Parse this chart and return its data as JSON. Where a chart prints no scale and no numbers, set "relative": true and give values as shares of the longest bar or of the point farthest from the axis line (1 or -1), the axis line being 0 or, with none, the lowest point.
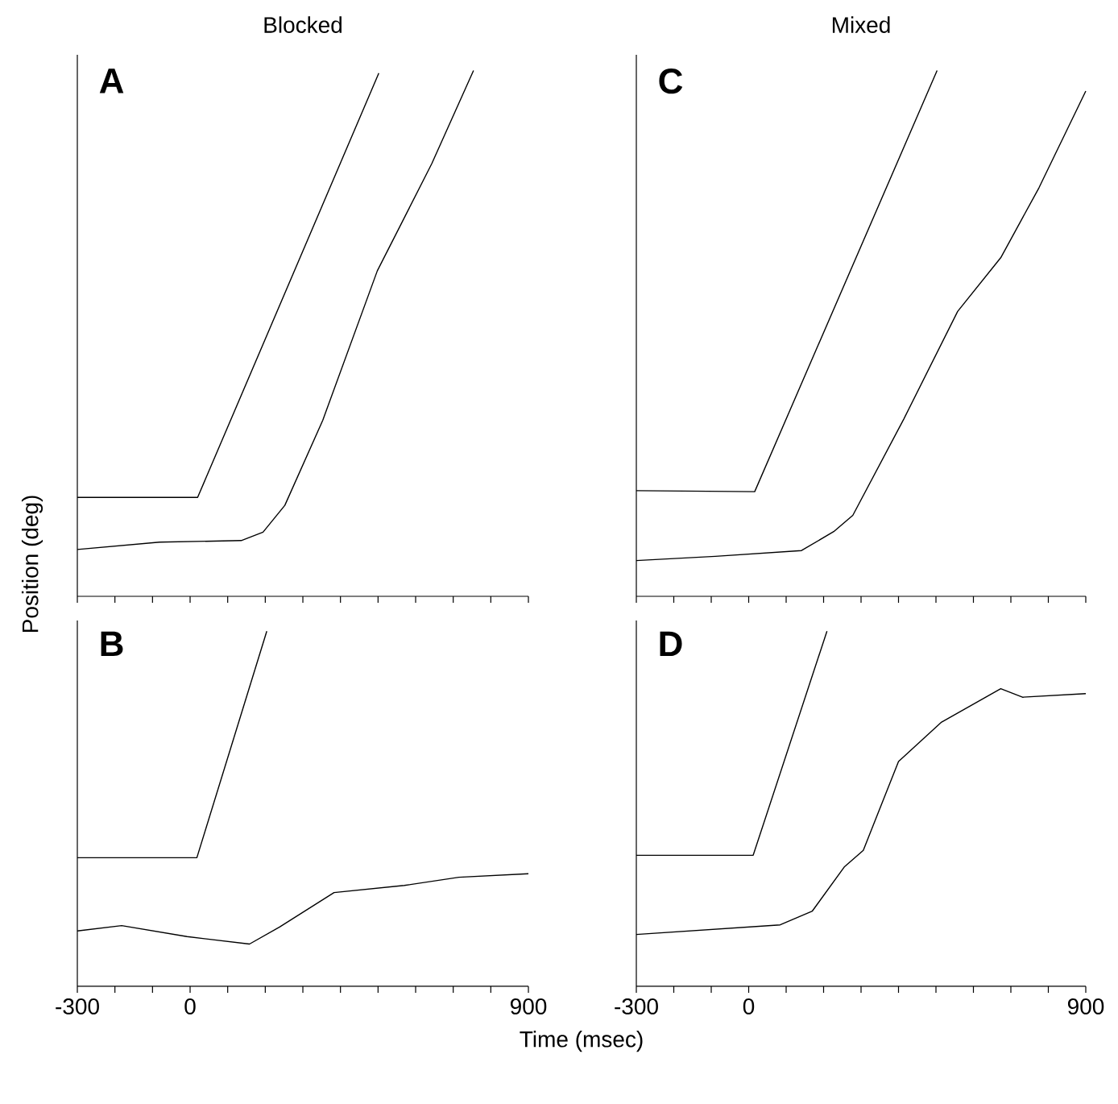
{
  "chart_data": [
    {
      "type": "line",
      "title": "Blocked",
      "annotations": [
        "A"
      ],
      "ylabel": "Position (deg)",
      "relative": true,
      "xlim": [
        -300,
        900
      ],
      "xticks": [
        -300,
        {
          "value": -200,
          "label": null
        },
        {
          "value": -100,
          "label": null
        },
        0,
        {
          "value": 100,
          "label": null
        },
        {
          "value": 200,
          "label": null
        },
        {
          "value": 300,
          "label": null
        },
        {
          "value": 400,
          "label": null
        },
        {
          "value": 500,
          "label": null
        },
        {
          "value": 600,
          "label": null
        },
        {
          "value": 700,
          "label": null
        },
        {
          "value": 800,
          "label": null
        },
        900
      ],
      "tick_labels": false,
      "series": [
        {
          "color": "#000000",
          "x": [
            -300,
            20,
            502
          ],
          "values": [
            0.188,
            0.188,
            0.995
          ]
        },
        {
          "color": "#000000",
          "x": [
            -300,
            -81,
            136,
            194,
            252,
            353,
            498,
            643,
            754
          ],
          "values": [
            0.089,
            0.103,
            0.106,
            0.122,
            0.173,
            0.335,
            0.619,
            0.823,
            1
          ]
        }
      ]
    },
    {
      "type": "line",
      "title": "Mixed",
      "annotations": [
        "C"
      ],
      "relative": true,
      "xlim": [
        -300,
        900
      ],
      "xticks": [
        -300,
        {
          "value": -200,
          "label": null
        },
        {
          "value": -100,
          "label": null
        },
        0,
        {
          "value": 100,
          "label": null
        },
        {
          "value": 200,
          "label": null
        },
        {
          "value": 300,
          "label": null
        },
        {
          "value": 400,
          "label": null
        },
        {
          "value": 500,
          "label": null
        },
        {
          "value": 600,
          "label": null
        },
        {
          "value": 700,
          "label": null
        },
        {
          "value": 800,
          "label": null
        },
        900
      ],
      "tick_labels": false,
      "series": [
        {
          "color": "#000000",
          "x": [
            -300,
            16,
            503
          ],
          "values": [
            0.201,
            0.199,
            1
          ]
        },
        {
          "color": "#000000",
          "x": [
            -300,
            -89,
            141,
            227,
            278,
            414,
            558,
            673,
            775,
            900
          ],
          "values": [
            0.068,
            0.076,
            0.087,
            0.123,
            0.154,
            0.337,
            0.542,
            0.644,
            0.777,
            0.961
          ]
        }
      ]
    },
    {
      "type": "line",
      "annotations": [
        "B"
      ],
      "xlabel": "Time (msec)",
      "relative": true,
      "xlim": [
        -300,
        900
      ],
      "xticks": [
        -300,
        {
          "value": -200,
          "label": null
        },
        {
          "value": -100,
          "label": null
        },
        0,
        {
          "value": 100,
          "label": null
        },
        {
          "value": 200,
          "label": null
        },
        {
          "value": 300,
          "label": null
        },
        {
          "value": 400,
          "label": null
        },
        {
          "value": 500,
          "label": null
        },
        {
          "value": 600,
          "label": null
        },
        {
          "value": 700,
          "label": null
        },
        {
          "value": 800,
          "label": null
        },
        900
      ],
      "tick_labels": "x",
      "series": [
        {
          "color": "#000000",
          "x": [
            -300,
            18,
            204
          ],
          "values": [
            0.362,
            0.362,
            1
          ]
        },
        {
          "color": "#000000",
          "x": [
            -300,
            -182,
            -8,
            158,
            238,
            383,
            570,
            715,
            900
          ],
          "values": [
            0.156,
            0.171,
            0.14,
            0.119,
            0.167,
            0.264,
            0.284,
            0.307,
            0.317
          ]
        }
      ]
    },
    {
      "type": "line",
      "annotations": [
        "D"
      ],
      "relative": true,
      "xlim": [
        -300,
        900
      ],
      "xticks": [
        -300,
        {
          "value": -200,
          "label": null
        },
        {
          "value": -100,
          "label": null
        },
        0,
        {
          "value": 100,
          "label": null
        },
        {
          "value": 200,
          "label": null
        },
        {
          "value": 300,
          "label": null
        },
        {
          "value": 400,
          "label": null
        },
        {
          "value": 500,
          "label": null
        },
        {
          "value": 600,
          "label": null
        },
        {
          "value": 700,
          "label": null
        },
        {
          "value": 800,
          "label": null
        },
        900
      ],
      "tick_labels": "x",
      "series": [
        {
          "color": "#000000",
          "x": [
            -300,
            12,
            209
          ],
          "values": [
            0.369,
            0.369,
            1
          ]
        },
        {
          "color": "#000000",
          "x": [
            -300,
            84,
            170,
            256,
            306,
            400,
            515,
            673,
            731,
            900
          ],
          "values": [
            0.146,
            0.173,
            0.212,
            0.337,
            0.383,
            0.633,
            0.744,
            0.838,
            0.814,
            0.824
          ]
        }
      ]
    }
  ]
}
